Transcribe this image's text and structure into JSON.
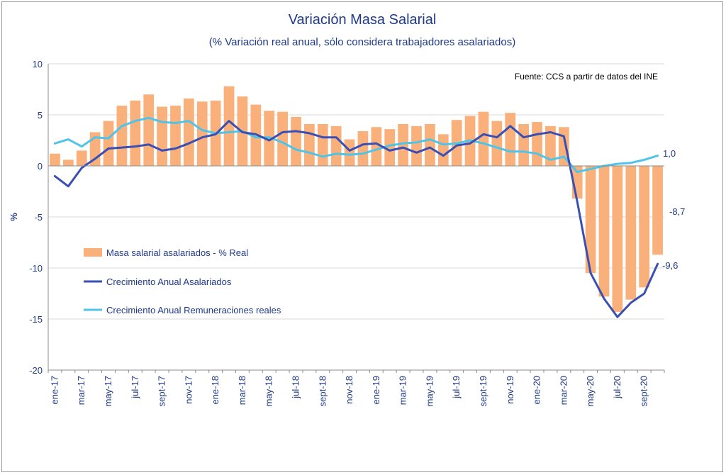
{
  "chart_data": {
    "type": "bar",
    "title": "Variación Masa Salarial",
    "subtitle": "(% Variación real anual, sólo considera trabajadores asalariados)",
    "source": "Fuente: CCS a partir de datos del INE",
    "ylabel": "%",
    "ylim": [
      -20,
      10
    ],
    "yticks": [
      "10",
      "5",
      "0",
      "-5",
      "-10",
      "-15",
      "-20"
    ],
    "grid": true,
    "legend_position": "left-center",
    "x": [
      "ene-17",
      "feb-17",
      "mar-17",
      "abr-17",
      "may-17",
      "jun-17",
      "jul-17",
      "ago-17",
      "sept-17",
      "oct-17",
      "nov-17",
      "dic-17",
      "ene-18",
      "feb-18",
      "mar-18",
      "abr-18",
      "may-18",
      "jun-18",
      "jul-18",
      "ago-18",
      "sept-18",
      "oct-18",
      "nov-18",
      "dic-18",
      "ene-19",
      "feb-19",
      "mar-19",
      "abr-19",
      "may-19",
      "jun-19",
      "jul-19",
      "ago-19",
      "sept-19",
      "oct-19",
      "nov-19",
      "dic-19",
      "ene-20",
      "feb-20",
      "mar-20",
      "abr-20",
      "may-20",
      "jun-20",
      "jul-20",
      "ago-20",
      "sept-20",
      "oct-20"
    ],
    "tick_labels": [
      "ene-17",
      "",
      "mar-17",
      "",
      "may-17",
      "",
      "jul-17",
      "",
      "sept-17",
      "",
      "nov-17",
      "",
      "ene-18",
      "",
      "mar-18",
      "",
      "may-18",
      "",
      "jul-18",
      "",
      "sept-18",
      "",
      "nov-18",
      "",
      "ene-19",
      "",
      "mar-19",
      "",
      "may-19",
      "",
      "jul-19",
      "",
      "sept-19",
      "",
      "nov-19",
      "",
      "ene-20",
      "",
      "mar-20",
      "",
      "may-20",
      "",
      "jul-20",
      "",
      "sept-20",
      ""
    ],
    "series": [
      {
        "name": "Masa salarial asalariados - % Real",
        "kind": "bar",
        "color": "#f9b07a",
        "values": [
          1.2,
          0.6,
          1.5,
          3.3,
          4.4,
          5.9,
          6.4,
          7.0,
          5.8,
          5.9,
          6.6,
          6.3,
          6.4,
          7.8,
          6.8,
          6.0,
          5.4,
          5.3,
          4.8,
          4.1,
          4.1,
          3.9,
          2.6,
          3.4,
          3.8,
          3.6,
          4.1,
          3.9,
          4.1,
          3.1,
          4.5,
          4.9,
          5.3,
          4.4,
          5.2,
          4.1,
          4.3,
          3.9,
          3.8,
          -3.2,
          -10.5,
          -12.8,
          -14.3,
          -13.1,
          -11.9,
          -8.7
        ]
      },
      {
        "name": "Crecimiento Anual Asalariados",
        "kind": "line",
        "color": "#3a4fb4",
        "values": [
          -1.0,
          -2.0,
          -0.2,
          0.7,
          1.7,
          1.8,
          1.9,
          2.1,
          1.5,
          1.7,
          2.2,
          2.8,
          3.1,
          4.4,
          3.3,
          3.1,
          2.5,
          3.3,
          3.4,
          3.2,
          2.8,
          2.8,
          1.5,
          2.1,
          2.2,
          1.5,
          1.8,
          1.3,
          1.8,
          1.0,
          2.0,
          2.2,
          3.1,
          2.8,
          3.9,
          2.8,
          3.1,
          3.3,
          2.9,
          -3.5,
          -10.5,
          -13.0,
          -14.8,
          -13.4,
          -12.5,
          -9.6
        ]
      },
      {
        "name": "Crecimiento Anual Remuneraciones reales",
        "kind": "line",
        "color": "#4fc3e8",
        "values": [
          2.2,
          2.6,
          1.9,
          2.8,
          2.7,
          3.9,
          4.4,
          4.7,
          4.3,
          4.2,
          4.4,
          3.5,
          3.2,
          3.3,
          3.4,
          2.8,
          2.8,
          2.3,
          1.6,
          1.3,
          0.9,
          1.2,
          1.1,
          1.2,
          1.6,
          2.0,
          2.2,
          2.3,
          2.6,
          2.1,
          2.2,
          2.5,
          2.2,
          1.8,
          1.4,
          1.4,
          1.2,
          0.6,
          0.9,
          -0.6,
          -0.3,
          0.0,
          0.2,
          0.3,
          0.6,
          1.0
        ]
      }
    ],
    "end_labels": [
      "1,0",
      "-8,7",
      "-9,6"
    ]
  }
}
